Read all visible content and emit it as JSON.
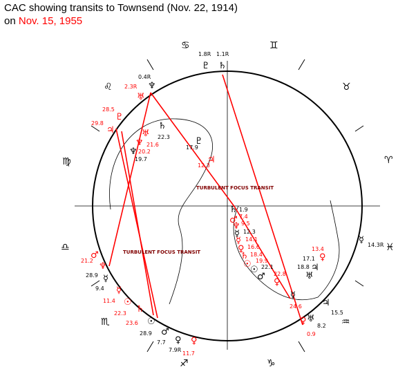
{
  "title": {
    "line1": "CAC showing transits to Townsend (Nov. 22, 1914)",
    "line2_prefix": "on",
    "line2_date": "Nov. 15, 1955"
  },
  "colors": {
    "natal": "#000000",
    "transit": "#ff0000",
    "focus_label": "#800000"
  },
  "focus_label_1": "TURBULENT FOCUS TRANSIT",
  "focus_label_2": "TURBULENT FOCUS TRANSIT",
  "signs": {
    "cancer": "♋",
    "gemini": "♊",
    "taurus": "♉",
    "aries": "♈",
    "pisces": "♓",
    "aquarius": "♒",
    "capricorn": "♑",
    "sagittarius": "♐",
    "scorpio": "♏",
    "libra": "♎",
    "virgo": "♍",
    "leo": "♌"
  },
  "glyphs": {
    "pluto": "♇",
    "saturn": "♄",
    "neptune": "♆",
    "uranus": "♅",
    "jupiter": "♃",
    "mars": "♂",
    "venus": "♀",
    "mercury": "☿",
    "sun": "☉"
  },
  "labels": {
    "top_pluto_deg": "1.8R",
    "top_saturn_deg": "1.1R",
    "ul_neptune_deg": "0.4R",
    "ul_uranus_deg": "2.3R",
    "ul_pluto_deg": "28.5",
    "ul_jupiter_deg": "29.8",
    "in_saturn_deg": "22.3",
    "in_uranus_deg": "21.6",
    "in_neptune_t_deg": "20.2",
    "in_neptune_n_deg": "19.7",
    "in_pluto_deg": "17.9",
    "in_jupiter_deg": "12.3",
    "c_saturn_deg": "1.9",
    "c_mars_deg": "7.4",
    "c_neptune_deg": "9.5",
    "c_mercury_deg": "12.3",
    "c_mercury_t_deg": "14.1",
    "c_venus_deg": "16.6",
    "c_saturn_t_deg": "18.4",
    "c_sun_deg": "19.9",
    "c_mars_n_deg": "22.1",
    "c_venus_n_deg": "22.8",
    "r_venus_deg": "13.4",
    "r_mercury_deg": "14.3R",
    "r_jupiter_deg": "17.1",
    "r_uranus_deg": "18.8",
    "br_mercury_deg": "24.6",
    "br_jupiter_deg": "15.5",
    "br_uranus_deg": "8.2",
    "br_venus_deg": "0.9",
    "l_mars_deg": "21.2",
    "l_neptune_deg": "28.9",
    "l_mercury_deg": "9.4",
    "l_venus_deg": "11.4",
    "l_sun_deg": "22.3",
    "l_saturn_deg": "23.6",
    "b_sun_deg": "28.9",
    "b_mars_deg": "7.7",
    "b_venus_n_deg": "7.9R",
    "b_venus_deg": "11.7"
  }
}
